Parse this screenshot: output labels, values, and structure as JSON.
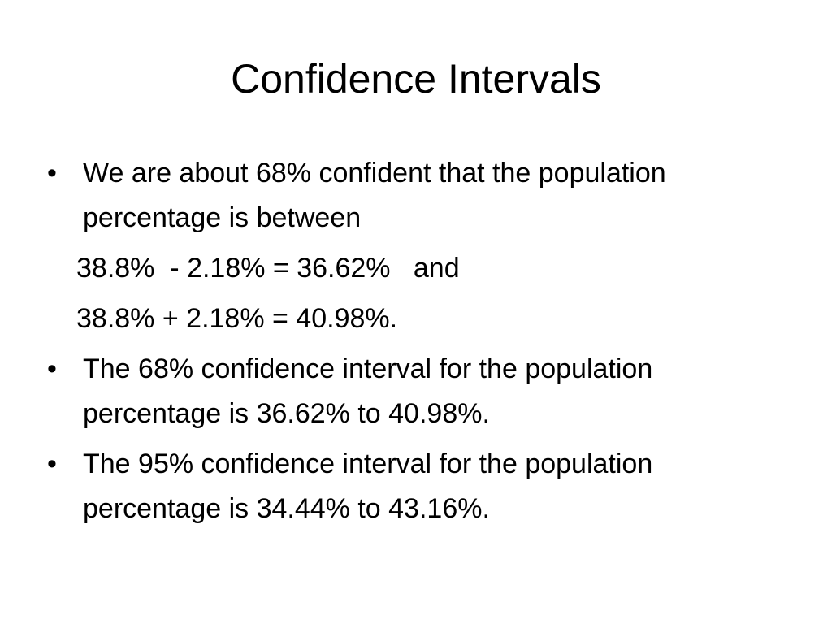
{
  "slide": {
    "title": "Confidence Intervals",
    "items": [
      {
        "kind": "bullet",
        "text": "We are about 68% confident that the population percentage is between"
      },
      {
        "kind": "plain",
        "text": "38.8%  - 2.18% = 36.62%   and"
      },
      {
        "kind": "plain",
        "text": "38.8% + 2.18% = 40.98%."
      },
      {
        "kind": "bullet",
        "text": "The 68% confidence interval for the population percentage is 36.62% to 40.98%."
      },
      {
        "kind": "bullet",
        "text": "The 95% confidence interval for the population percentage is 34.44% to 43.16%."
      }
    ],
    "bullet_glyph": "•"
  }
}
